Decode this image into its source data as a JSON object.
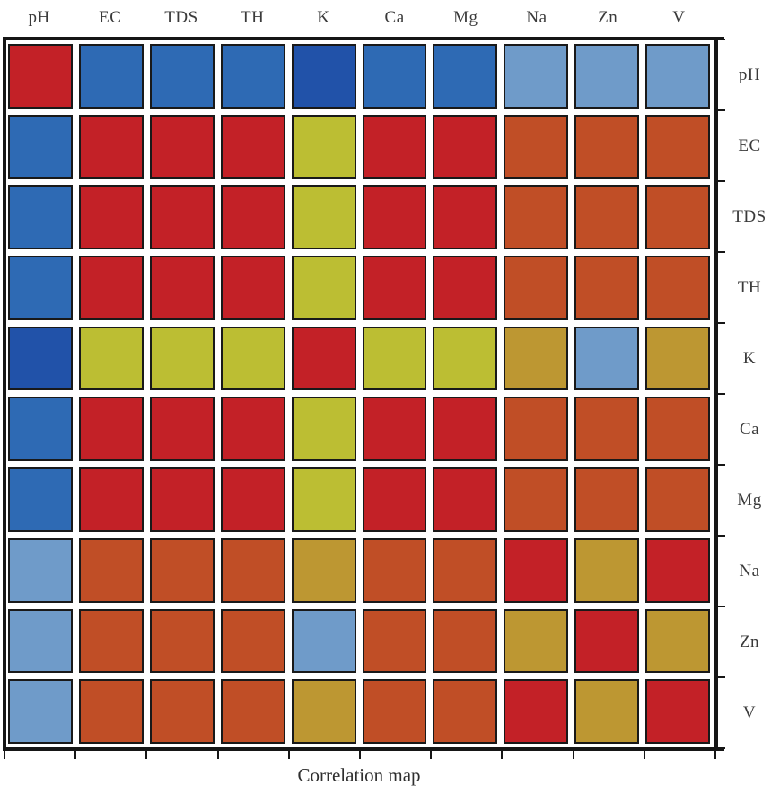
{
  "title": "Correlation map",
  "colors": {
    "background": "#ffffff",
    "frame": "#161616",
    "cell_border": "#191919",
    "label_text": "#3a3a3a"
  },
  "chart_data": {
    "type": "heatmap",
    "title": "Correlation map",
    "x_labels": [
      "pH",
      "EC",
      "TDS",
      "TH",
      "K",
      "Ca",
      "Mg",
      "Na",
      "Zn",
      "V"
    ],
    "y_labels": [
      "pH",
      "EC",
      "TDS",
      "TH",
      "K",
      "Ca",
      "Mg",
      "Na",
      "Zn",
      "V"
    ],
    "palette": {
      "R": "#c32127",
      "O": "#c04e26",
      "G": "#bd9732",
      "Y": "#bcbe33",
      "LB": "#6f9bc9",
      "B": "#2e6ab4",
      "DB": "#2152a9"
    },
    "palette_names": {
      "R": "red",
      "O": "orange",
      "G": "golden",
      "Y": "yellow-green",
      "LB": "light-blue",
      "B": "blue",
      "DB": "dark-blue"
    },
    "cells": [
      [
        "R",
        "B",
        "B",
        "B",
        "DB",
        "B",
        "B",
        "LB",
        "LB",
        "LB"
      ],
      [
        "B",
        "R",
        "R",
        "R",
        "Y",
        "R",
        "R",
        "O",
        "O",
        "O"
      ],
      [
        "B",
        "R",
        "R",
        "R",
        "Y",
        "R",
        "R",
        "O",
        "O",
        "O"
      ],
      [
        "B",
        "R",
        "R",
        "R",
        "Y",
        "R",
        "R",
        "O",
        "O",
        "O"
      ],
      [
        "DB",
        "Y",
        "Y",
        "Y",
        "R",
        "Y",
        "Y",
        "G",
        "LB",
        "G"
      ],
      [
        "B",
        "R",
        "R",
        "R",
        "Y",
        "R",
        "R",
        "O",
        "O",
        "O"
      ],
      [
        "B",
        "R",
        "R",
        "R",
        "Y",
        "R",
        "R",
        "O",
        "O",
        "O"
      ],
      [
        "LB",
        "O",
        "O",
        "O",
        "G",
        "O",
        "O",
        "R",
        "G",
        "R"
      ],
      [
        "LB",
        "O",
        "O",
        "O",
        "LB",
        "O",
        "O",
        "G",
        "R",
        "G"
      ],
      [
        "LB",
        "O",
        "O",
        "O",
        "G",
        "O",
        "O",
        "R",
        "G",
        "R"
      ]
    ],
    "legend_position": "none",
    "grid_lines": "off",
    "x_ticks_position": "bottom",
    "y_ticks_position": "right",
    "tick_count_x": 11,
    "tick_count_y": 11
  }
}
